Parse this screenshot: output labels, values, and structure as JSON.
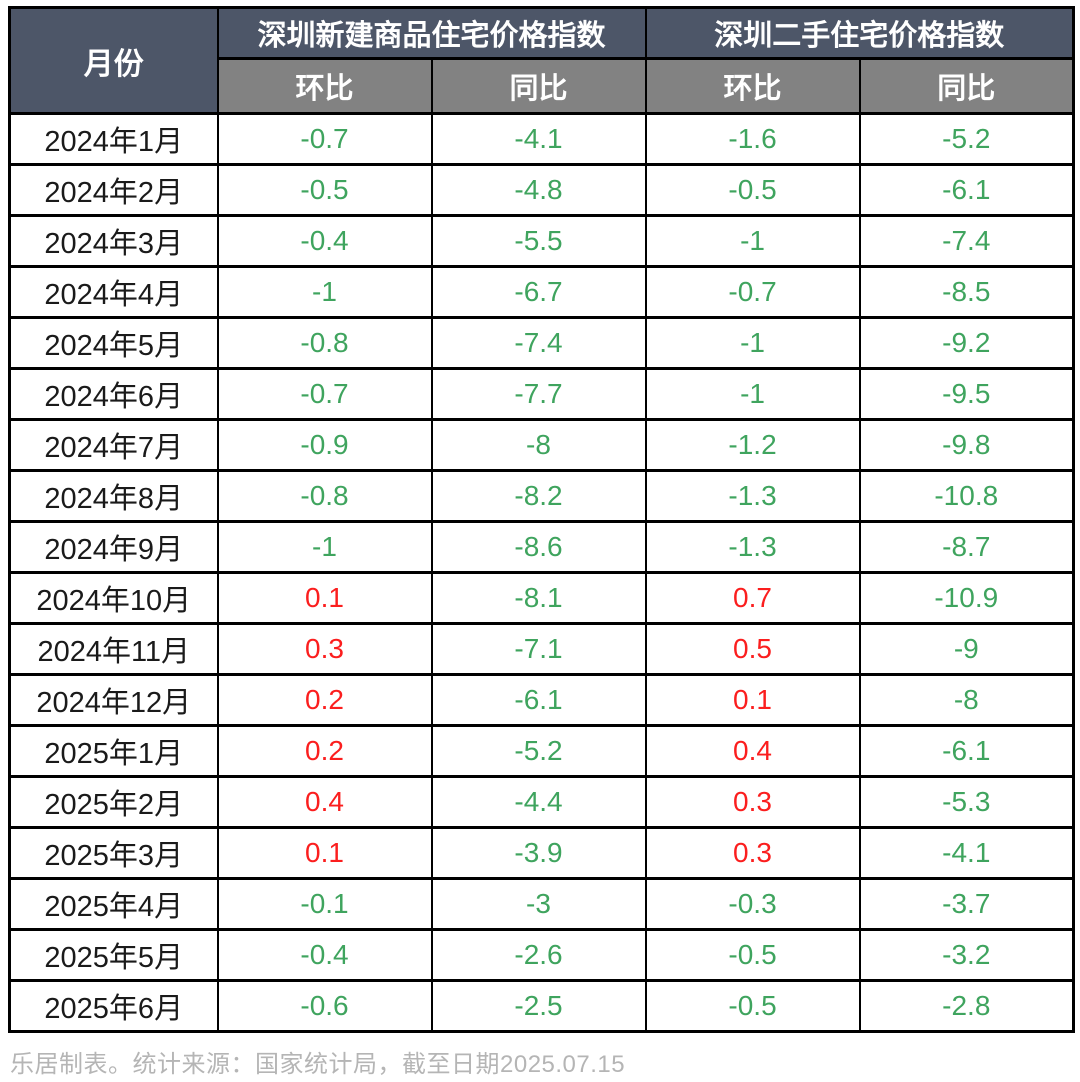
{
  "colors": {
    "header-dark": "#4d5668",
    "header-gray": "#828282",
    "header-text": "#ffffff",
    "month-text": "#1a1a1a",
    "negative": "#3fa45e",
    "positive": "#fb1e1e",
    "border": "#000000",
    "footer-text": "#b5b5b5",
    "background": "#ffffff"
  },
  "chart_data": {
    "type": "table",
    "month_header": "月份",
    "column_groups": [
      {
        "label": "深圳新建商品住宅价格指数",
        "sub_headers": [
          "环比",
          "同比"
        ]
      },
      {
        "label": "深圳二手住宅价格指数",
        "sub_headers": [
          "环比",
          "同比"
        ]
      }
    ],
    "rows": [
      {
        "month": "2024年1月",
        "values": [
          -0.7,
          -4.1,
          -1.6,
          -5.2
        ]
      },
      {
        "month": "2024年2月",
        "values": [
          -0.5,
          -4.8,
          -0.5,
          -6.1
        ]
      },
      {
        "month": "2024年3月",
        "values": [
          -0.4,
          -5.5,
          -1,
          -7.4
        ]
      },
      {
        "month": "2024年4月",
        "values": [
          -1,
          -6.7,
          -0.7,
          -8.5
        ]
      },
      {
        "month": "2024年5月",
        "values": [
          -0.8,
          -7.4,
          -1,
          -9.2
        ]
      },
      {
        "month": "2024年6月",
        "values": [
          -0.7,
          -7.7,
          -1,
          -9.5
        ]
      },
      {
        "month": "2024年7月",
        "values": [
          -0.9,
          -8,
          -1.2,
          -9.8
        ]
      },
      {
        "month": "2024年8月",
        "values": [
          -0.8,
          -8.2,
          -1.3,
          -10.8
        ]
      },
      {
        "month": "2024年9月",
        "values": [
          -1,
          -8.6,
          -1.3,
          -8.7
        ]
      },
      {
        "month": "2024年10月",
        "values": [
          0.1,
          -8.1,
          0.7,
          -10.9
        ]
      },
      {
        "month": "2024年11月",
        "values": [
          0.3,
          -7.1,
          0.5,
          -9
        ]
      },
      {
        "month": "2024年12月",
        "values": [
          0.2,
          -6.1,
          0.1,
          -8
        ]
      },
      {
        "month": "2025年1月",
        "values": [
          0.2,
          -5.2,
          0.4,
          -6.1
        ]
      },
      {
        "month": "2025年2月",
        "values": [
          0.4,
          -4.4,
          0.3,
          -5.3
        ]
      },
      {
        "month": "2025年3月",
        "values": [
          0.1,
          -3.9,
          0.3,
          -4.1
        ]
      },
      {
        "month": "2025年4月",
        "values": [
          -0.1,
          -3,
          -0.3,
          -3.7
        ]
      },
      {
        "month": "2025年5月",
        "values": [
          -0.4,
          -2.6,
          -0.5,
          -3.2
        ]
      },
      {
        "month": "2025年6月",
        "values": [
          -0.6,
          -2.5,
          -0.5,
          -2.8
        ]
      }
    ]
  },
  "footer": {
    "text": "乐居制表。统计来源：国家统计局，截至日期2025.07.15"
  }
}
